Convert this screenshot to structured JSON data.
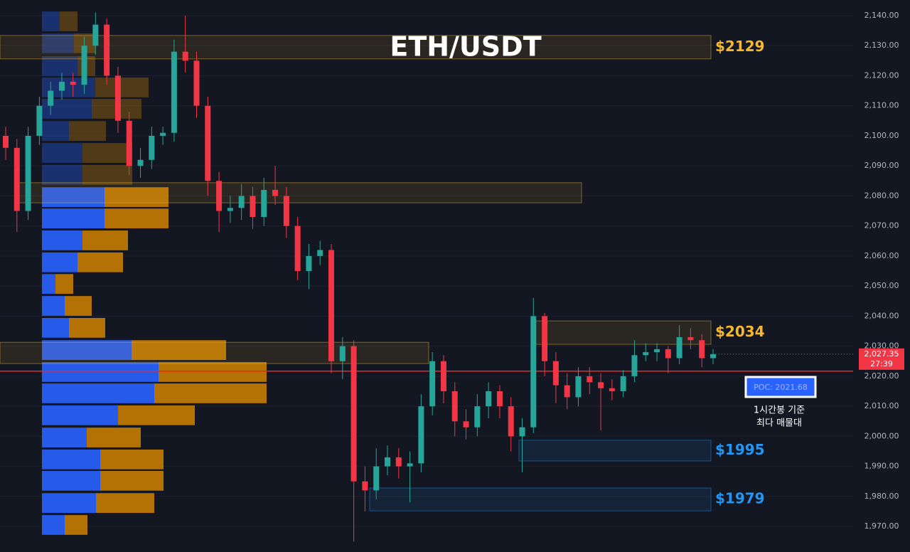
{
  "chart_data": {
    "type": "candlestick",
    "title": "ETH/USDT",
    "ylim": [
      1961.5,
      2145.2
    ],
    "yticks": [
      {
        "value": 2140,
        "label": "2,140.00"
      },
      {
        "value": 2130,
        "label": "2,130.00"
      },
      {
        "value": 2120,
        "label": "2,120.00"
      },
      {
        "value": 2110,
        "label": "2,110.00"
      },
      {
        "value": 2100,
        "label": "2,100.00"
      },
      {
        "value": 2090,
        "label": "2,090.00"
      },
      {
        "value": 2080,
        "label": "2,080.00"
      },
      {
        "value": 2070,
        "label": "2,070.00"
      },
      {
        "value": 2060,
        "label": "2,060.00"
      },
      {
        "value": 2050,
        "label": "2,050.00"
      },
      {
        "value": 2040,
        "label": "2,040.00"
      },
      {
        "value": 2030,
        "label": "2,030.00"
      },
      {
        "value": 2020,
        "label": "2,020.00"
      },
      {
        "value": 2010,
        "label": "2,010.00"
      },
      {
        "value": 2000,
        "label": "2,000.00"
      },
      {
        "value": 1990,
        "label": "1,990.00"
      },
      {
        "value": 1980,
        "label": "1,980.00"
      },
      {
        "value": 1970,
        "label": "1,970.00"
      }
    ],
    "up_color": "#26a69a",
    "down_color": "#f23645",
    "open": [
      2100,
      2096,
      2075,
      2100,
      2110,
      2115,
      2118,
      2117,
      2130,
      2137,
      2120,
      2105,
      2090,
      2092,
      2100,
      2101,
      2128,
      2125,
      2110,
      2085,
      2075,
      2076,
      2080,
      2073,
      2082,
      2080,
      2070,
      2055,
      2060,
      2062,
      2025,
      2030,
      1985,
      1982,
      1990,
      1993,
      1990,
      1991,
      2010,
      2025,
      2015,
      2005,
      2003,
      2010,
      2015,
      2010,
      2000,
      2003,
      2040,
      2025,
      2017,
      2013,
      2020,
      2018,
      2016,
      2015,
      2020,
      2027,
      2028,
      2029,
      2026,
      2033,
      2032,
      2026
    ],
    "high": [
      2103,
      2099,
      2103,
      2113,
      2118,
      2121,
      2121,
      2133,
      2141,
      2139,
      2123,
      2108,
      2096,
      2103,
      2103,
      2132,
      2140,
      2128,
      2113,
      2088,
      2080,
      2084,
      2083,
      2086,
      2090,
      2083,
      2073,
      2064,
      2065,
      2064,
      2033,
      2032,
      1990,
      1996,
      1997,
      1996,
      1995,
      2014,
      2028,
      2027,
      2018,
      2009,
      2014,
      2018,
      2017,
      2013,
      2006,
      2046,
      2041,
      2028,
      2021,
      2023,
      2023,
      2021,
      2019,
      2022,
      2032,
      2031,
      2031,
      2030,
      2037,
      2036,
      2034,
      2029
    ],
    "low": [
      2092,
      2068,
      2072,
      2097,
      2107,
      2112,
      2113,
      2114,
      2127,
      2117,
      2101,
      2087,
      2086,
      2089,
      2097,
      2098,
      2121,
      2106,
      2080,
      2068,
      2071,
      2072,
      2069,
      2070,
      2077,
      2066,
      2052,
      2049,
      2057,
      2021,
      2019,
      1965,
      1975,
      1979,
      1987,
      1986,
      1978,
      1988,
      2007,
      2011,
      2000,
      1999,
      2000,
      2006,
      2006,
      1995,
      1988,
      2001,
      2020,
      2011,
      2009,
      2010,
      2014,
      2002,
      2012,
      2013,
      2018,
      2025,
      2025,
      2021,
      2024,
      2029,
      2023,
      2024
    ],
    "close": [
      2096,
      2075,
      2100,
      2110,
      2115,
      2118,
      2117,
      2130,
      2137,
      2120,
      2105,
      2090,
      2092,
      2100,
      2101,
      2128,
      2125,
      2110,
      2085,
      2075,
      2076,
      2080,
      2073,
      2082,
      2080,
      2070,
      2055,
      2060,
      2062,
      2025,
      2030,
      1985,
      1982,
      1990,
      1993,
      1990,
      1991,
      2010,
      2025,
      2015,
      2005,
      2003,
      2010,
      2015,
      2010,
      2000,
      2003,
      2040,
      2025,
      2017,
      2013,
      2020,
      2018,
      2016,
      2015,
      2020,
      2027,
      2028,
      2029,
      2026,
      2033,
      2032,
      2026,
      2027.35
    ],
    "volume_profile": {
      "prices": [
        2138.1,
        2130.8,
        2123.2,
        2116.1,
        2109.0,
        2101.6,
        2094.3,
        2087.0,
        2079.6,
        2072.5,
        2065.2,
        2057.9,
        2050.7,
        2043.4,
        2036.1,
        2028.7,
        2021.4,
        2014.3,
        2007.0,
        1999.6,
        1992.3,
        1985.2,
        1977.8,
        1970.5
      ],
      "buy": [
        25,
        45,
        50,
        75,
        70,
        38,
        57,
        57,
        88,
        88,
        57,
        50,
        19,
        32,
        38,
        126,
        164,
        158,
        107,
        63,
        82,
        82,
        76,
        32
      ],
      "sell": [
        25,
        30,
        25,
        75,
        70,
        52,
        70,
        70,
        90,
        90,
        64,
        64,
        25,
        38,
        51,
        133,
        152,
        158,
        108,
        76,
        89,
        89,
        82,
        32
      ],
      "buy_color": "#2962ff",
      "sell_color": "#c77c02"
    },
    "zones": [
      {
        "label": "$2129",
        "low": 2125.6,
        "high": 2133.4,
        "color": "#f5b82e"
      },
      {
        "low": 2077.7,
        "high": 2084.4,
        "color": "#f5b82e"
      },
      {
        "label": "$2034",
        "low": 2030.6,
        "high": 2038.4,
        "color": "#f5b82e"
      },
      {
        "low": 2024.2,
        "high": 2031.3,
        "color": "#f5b82e"
      },
      {
        "label": "$1995",
        "low": 1991.8,
        "high": 1998.7,
        "color": "#2196f3"
      },
      {
        "label": "$1979",
        "low": 1975.2,
        "high": 1982.8,
        "color": "#2196f3"
      }
    ],
    "poc": 2021.68,
    "poc_label": "POC: 2021.68",
    "poc_color": "#ff1e1e",
    "last_price": 2027.35,
    "last_price_label": "2,027.35",
    "countdown": "27:39",
    "annotation": [
      "1시간봉 기준",
      "최다 매물대"
    ]
  }
}
